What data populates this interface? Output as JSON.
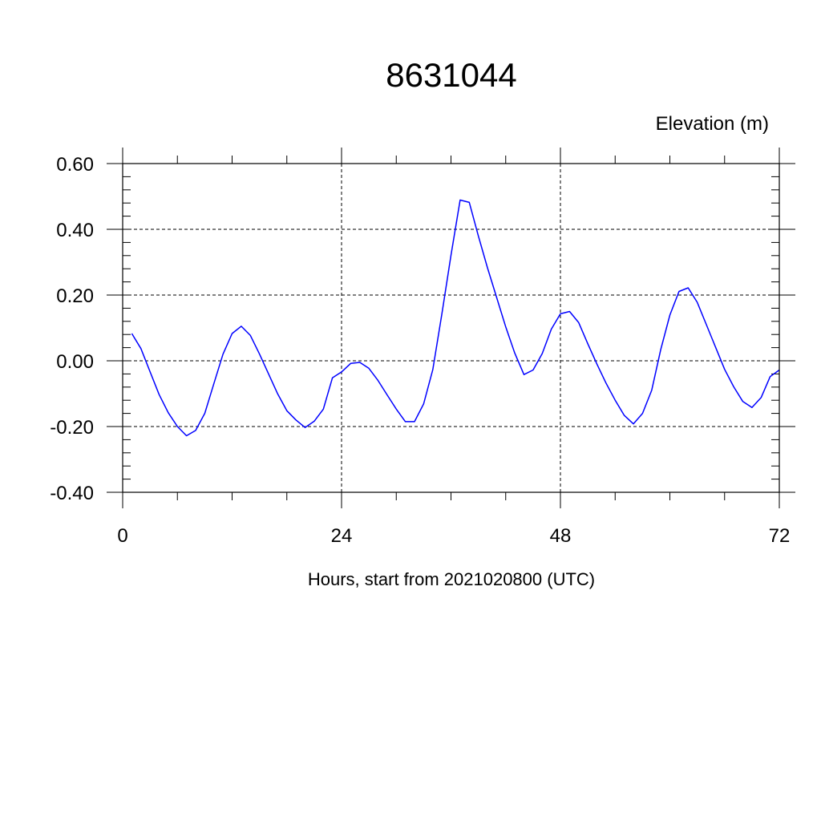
{
  "chart_data": {
    "type": "line",
    "title": "8631044",
    "ylabel": "Elevation (m)",
    "xlabel": "Hours, start from 2021020800 (UTC)",
    "xlim": [
      0,
      72
    ],
    "ylim": [
      -0.4,
      0.6
    ],
    "x_ticks": [
      0,
      24,
      48,
      72
    ],
    "x_tick_labels": [
      "0",
      "24",
      "48",
      "72"
    ],
    "x_minor_step": 6,
    "y_ticks": [
      -0.4,
      -0.2,
      0.0,
      0.2,
      0.4,
      0.6
    ],
    "y_tick_labels": [
      "-0.40",
      "-0.20",
      "0.00",
      "0.20",
      "0.40",
      "0.60"
    ],
    "y_minor_step": 0.04,
    "grid": true,
    "grid_style": "dashed",
    "colors": {
      "series": "#0000ff",
      "axis": "#000000"
    },
    "series": [
      {
        "x": [
          1,
          2,
          3,
          4,
          5,
          6,
          7,
          8,
          9,
          10,
          11,
          12,
          13,
          14,
          15,
          16,
          17,
          18,
          19,
          20,
          21,
          22,
          23,
          24,
          25,
          26,
          27,
          28,
          29,
          30,
          31,
          32,
          33,
          34,
          35,
          36,
          37,
          38,
          39,
          40,
          41,
          42,
          43,
          44,
          45,
          46,
          47,
          48,
          49,
          50,
          51,
          52,
          53,
          54,
          55,
          56,
          57,
          58,
          59,
          60,
          61,
          62,
          63,
          64,
          65,
          66,
          67,
          68,
          69,
          70,
          71,
          72
        ],
        "values": [
          0.083,
          0.037,
          -0.033,
          -0.103,
          -0.158,
          -0.2,
          -0.228,
          -0.212,
          -0.16,
          -0.069,
          0.02,
          0.083,
          0.105,
          0.077,
          0.021,
          -0.04,
          -0.101,
          -0.152,
          -0.18,
          -0.203,
          -0.184,
          -0.147,
          -0.052,
          -0.034,
          -0.008,
          -0.005,
          -0.023,
          -0.06,
          -0.104,
          -0.147,
          -0.185,
          -0.185,
          -0.131,
          -0.027,
          0.142,
          0.321,
          0.489,
          0.482,
          0.38,
          0.283,
          0.193,
          0.103,
          0.023,
          -0.042,
          -0.028,
          0.022,
          0.096,
          0.143,
          0.15,
          0.116,
          0.052,
          -0.01,
          -0.068,
          -0.12,
          -0.166,
          -0.192,
          -0.16,
          -0.09,
          0.034,
          0.139,
          0.211,
          0.222,
          0.178,
          0.11,
          0.042,
          -0.026,
          -0.079,
          -0.124,
          -0.142,
          -0.112,
          -0.048,
          -0.028
        ]
      }
    ]
  }
}
